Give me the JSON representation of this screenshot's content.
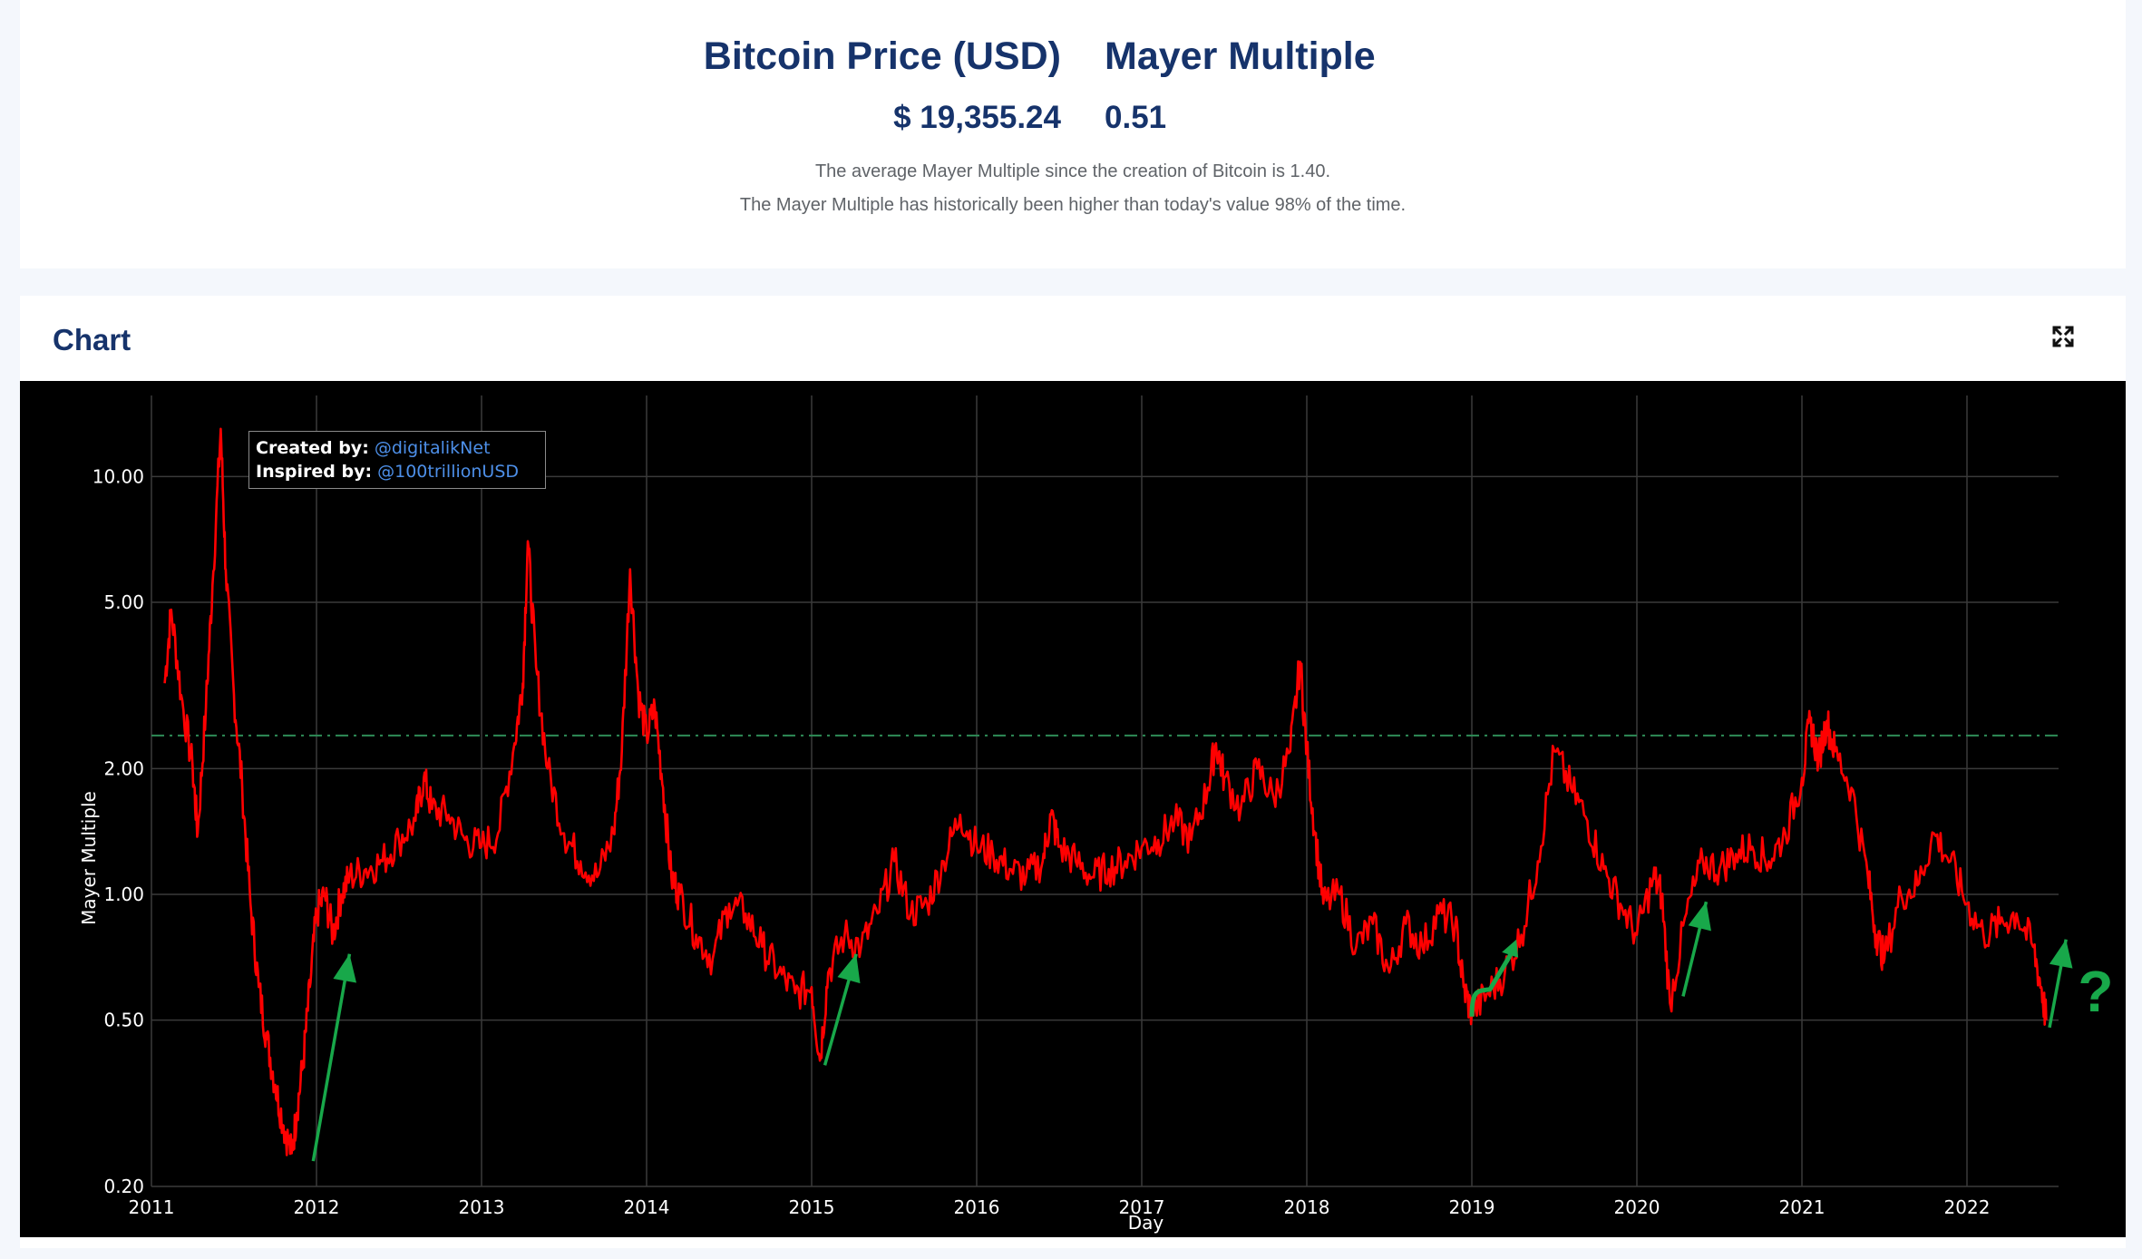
{
  "summary": {
    "price_label": "Bitcoin Price (USD)",
    "price_value": "$ 19,355.24",
    "mayer_label": "Mayer Multiple",
    "mayer_value": "0.51",
    "note_average": "The average Mayer Multiple since the creation of Bitcoin is 1.40.",
    "note_history": "The Mayer Multiple has historically been higher than today's value 98% of the time."
  },
  "chart_card": {
    "title": "Chart",
    "expand_icon": "expand-icon"
  },
  "credits": {
    "created_label": "Created by:",
    "created_handle": "@digitalikNet",
    "inspired_label": "Inspired by:",
    "inspired_handle": "@100trillionUSD"
  },
  "colors": {
    "title_blue": "#16336b",
    "series_red": "#ff0000",
    "reference_green": "#2e8b57",
    "arrow_green": "#18a84a",
    "plot_background": "#000000"
  },
  "chart_data": {
    "type": "line",
    "xlabel": "Day",
    "ylabel": "Mayer Multiple",
    "yscale": "log",
    "xlim": [
      2011.0,
      2022.5
    ],
    "ylim": [
      0.2,
      14
    ],
    "x_ticks": [
      "2011",
      "2012",
      "2013",
      "2014",
      "2015",
      "2016",
      "2017",
      "2018",
      "2019",
      "2020",
      "2021",
      "2022"
    ],
    "y_ticks": [
      "0.20",
      "0.50",
      "1.00",
      "2.00",
      "5.00",
      "10.00"
    ],
    "y_tick_values": [
      0.2,
      0.5,
      1.0,
      2.0,
      5.0,
      10.0
    ],
    "grid": true,
    "reference_line": {
      "value": 2.4,
      "style": "dash-dot"
    },
    "series": [
      {
        "x": [
          2011.08,
          2011.12,
          2011.18,
          2011.25,
          2011.28,
          2011.33,
          2011.37,
          2011.42,
          2011.45,
          2011.5,
          2011.55,
          2011.6,
          2011.65,
          2011.7,
          2011.75,
          2011.8,
          2011.85,
          2011.88,
          2011.92,
          2011.96,
          2012.0,
          2012.05,
          2012.1,
          2012.15,
          2012.2,
          2012.3,
          2012.4,
          2012.5,
          2012.6,
          2012.65,
          2012.7,
          2012.8,
          2012.9,
          2013.0,
          2013.1,
          2013.2,
          2013.25,
          2013.28,
          2013.33,
          2013.4,
          2013.5,
          2013.6,
          2013.7,
          2013.8,
          2013.85,
          2013.9,
          2013.95,
          2014.0,
          2014.05,
          2014.1,
          2014.15,
          2014.2,
          2014.3,
          2014.4,
          2014.5,
          2014.6,
          2014.7,
          2014.8,
          2014.9,
          2015.0,
          2015.05,
          2015.1,
          2015.2,
          2015.3,
          2015.4,
          2015.5,
          2015.6,
          2015.7,
          2015.8,
          2015.9,
          2016.0,
          2016.1,
          2016.2,
          2016.3,
          2016.4,
          2016.45,
          2016.5,
          2016.6,
          2016.7,
          2016.8,
          2016.9,
          2017.0,
          2017.1,
          2017.2,
          2017.3,
          2017.4,
          2017.45,
          2017.5,
          2017.6,
          2017.7,
          2017.8,
          2017.9,
          2017.96,
          2018.0,
          2018.05,
          2018.1,
          2018.2,
          2018.3,
          2018.4,
          2018.5,
          2018.6,
          2018.7,
          2018.8,
          2018.9,
          2018.95,
          2019.0,
          2019.1,
          2019.2,
          2019.3,
          2019.4,
          2019.5,
          2019.6,
          2019.7,
          2019.8,
          2019.9,
          2020.0,
          2020.1,
          2020.15,
          2020.2,
          2020.3,
          2020.4,
          2020.5,
          2020.6,
          2020.7,
          2020.8,
          2020.9,
          2021.0,
          2021.05,
          2021.1,
          2021.15,
          2021.2,
          2021.3,
          2021.4,
          2021.45,
          2021.5,
          2021.6,
          2021.7,
          2021.8,
          2021.9,
          2022.0,
          2022.1,
          2022.2,
          2022.3,
          2022.4,
          2022.45,
          2022.48
        ],
        "y": [
          3.2,
          4.8,
          3.0,
          2.0,
          1.4,
          2.8,
          5.5,
          13.0,
          6.0,
          3.0,
          1.8,
          0.95,
          0.6,
          0.45,
          0.35,
          0.28,
          0.24,
          0.3,
          0.4,
          0.6,
          0.9,
          1.0,
          0.8,
          1.0,
          1.1,
          1.15,
          1.2,
          1.35,
          1.5,
          1.9,
          1.6,
          1.55,
          1.35,
          1.3,
          1.4,
          2.3,
          3.2,
          7.0,
          3.5,
          2.0,
          1.4,
          1.2,
          1.1,
          1.4,
          2.2,
          6.0,
          3.0,
          2.4,
          2.8,
          1.8,
          1.1,
          1.0,
          0.8,
          0.7,
          0.95,
          0.9,
          0.75,
          0.65,
          0.58,
          0.6,
          0.4,
          0.65,
          0.8,
          0.75,
          0.9,
          1.2,
          0.9,
          0.95,
          1.2,
          1.55,
          1.3,
          1.25,
          1.15,
          1.1,
          1.2,
          1.55,
          1.3,
          1.2,
          1.1,
          1.15,
          1.2,
          1.3,
          1.35,
          1.5,
          1.35,
          1.8,
          2.3,
          1.9,
          1.6,
          2.0,
          1.7,
          2.2,
          3.6,
          2.2,
          1.4,
          0.95,
          1.0,
          0.75,
          0.85,
          0.65,
          0.85,
          0.75,
          0.9,
          0.85,
          0.6,
          0.52,
          0.58,
          0.65,
          0.8,
          1.2,
          2.2,
          1.8,
          1.5,
          1.15,
          0.95,
          0.8,
          1.1,
          1.0,
          0.55,
          0.9,
          1.2,
          1.15,
          1.25,
          1.3,
          1.2,
          1.4,
          1.9,
          2.6,
          2.1,
          2.6,
          2.2,
          1.8,
          1.1,
          0.8,
          0.7,
          1.0,
          1.05,
          1.4,
          1.2,
          0.95,
          0.8,
          0.85,
          0.9,
          0.75,
          0.6,
          0.5
        ]
      }
    ],
    "annotations": {
      "arrows_from_to": [
        [
          [
            2011.98,
            0.23
          ],
          [
            2012.2,
            0.72
          ]
        ],
        [
          [
            2015.08,
            0.39
          ],
          [
            2015.27,
            0.72
          ]
        ],
        [
          [
            2020.28,
            0.57
          ],
          [
            2020.42,
            0.96
          ]
        ],
        [
          [
            2022.5,
            0.48
          ],
          [
            2022.6,
            0.78
          ]
        ]
      ],
      "curved_arrow_from_to": [
        [
          2019.0,
          0.51
        ],
        [
          2019.27,
          0.78
        ]
      ],
      "question_mark": "?",
      "question_mark_at": [
        2022.78,
        0.58
      ]
    }
  }
}
